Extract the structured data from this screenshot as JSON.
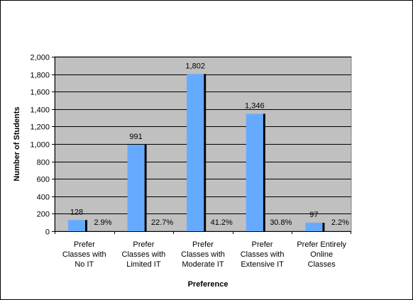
{
  "chart_data": {
    "type": "bar",
    "xlabel": "Preference",
    "ylabel": "Number of Students",
    "ylim": [
      0,
      2000
    ],
    "yticks": [
      "0",
      "200",
      "400",
      "600",
      "800",
      "1,000",
      "1,200",
      "1,400",
      "1,600",
      "1,800",
      "2,000"
    ],
    "categories": [
      [
        "Prefer",
        "Classes with",
        "No IT"
      ],
      [
        "Prefer",
        "Classes with",
        "Limited IT"
      ],
      [
        "Prefer",
        "Classes with",
        "Moderate IT"
      ],
      [
        "Prefer",
        "Classes with",
        "Extensive IT"
      ],
      [
        "Prefer Entirely",
        "Online",
        "Classes"
      ]
    ],
    "values": [
      128,
      991,
      1802,
      1346,
      97
    ],
    "value_labels": [
      "128",
      "991",
      "1,802",
      "1,346",
      "97"
    ],
    "percent_labels": [
      "2.9%",
      "22.7%",
      "41.2%",
      "30.8%",
      "2.2%"
    ],
    "grid": true,
    "colors": {
      "bar": "#66aaff",
      "plot_bg": "#c0c0c0",
      "grid": "#000000",
      "shadow": "#000000"
    }
  }
}
